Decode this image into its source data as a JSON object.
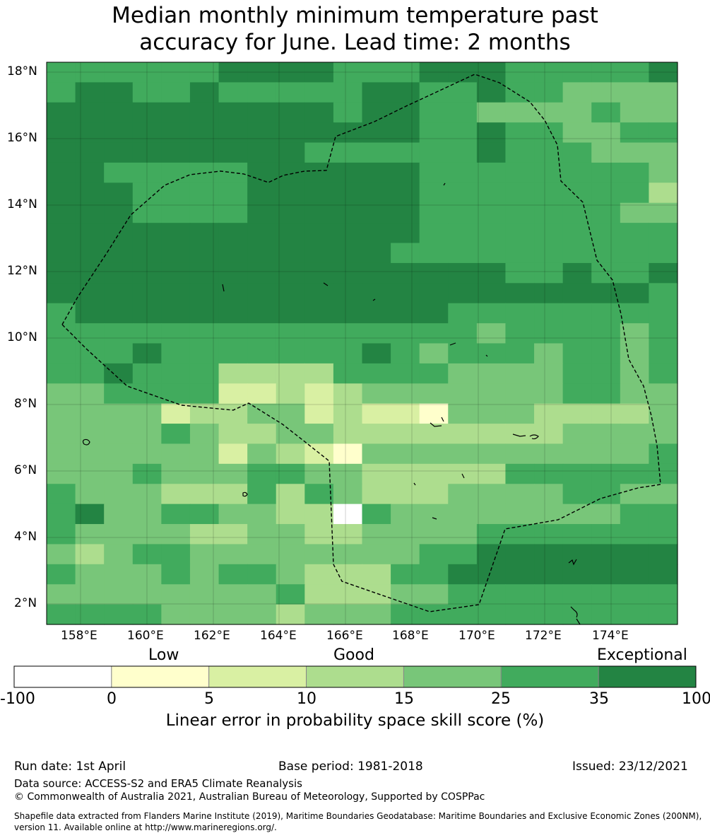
{
  "title_line1": "Median monthly minimum temperature past",
  "title_line2": "accuracy for June. Lead time: 2 months",
  "lat_labels": [
    "18°N",
    "16°N",
    "14°N",
    "12°N",
    "10°N",
    "8°N",
    "6°N",
    "4°N",
    "2°N"
  ],
  "lon_labels": [
    "158°E",
    "160°E",
    "162°E",
    "164°E",
    "166°E",
    "168°E",
    "170°E",
    "172°E",
    "174°E"
  ],
  "legend": {
    "category_labels": [
      "Low",
      "Good",
      "Exceptional"
    ],
    "bins": [
      "-100",
      "0",
      "5",
      "10",
      "15",
      "25",
      "35",
      "100"
    ],
    "colors": [
      "#ffffff",
      "#ffffcc",
      "#d9f0a3",
      "#addd8e",
      "#78c679",
      "#41ab5d",
      "#238443"
    ],
    "title": "Linear error in probability space skill score (%)"
  },
  "footer": {
    "run_date": "Run date: 1st April",
    "base_period": "Base period: 1981-2018",
    "issued": "Issued: 23/12/2021",
    "data_source": "Data source: ACCESS-S2 and ERA5 Climate Reanalysis",
    "copyright": "© Commonwealth of Australia 2021, Australian Bureau of Meteorology, Supported by COSPPac",
    "shapefile": "Shapefile data extracted from Flanders Marine Institute (2019), Maritime Boundaries Geodatabase: Maritime Boundaries and Exclusive Economic Zones (200NM), version 11. Available online at http://www.marineregions.org/."
  },
  "grid_rows_top_to_bottom": [
    "5555556666555666555556",
    "5665565555566556554444",
    "6666666666566554444544",
    "6666666666666556554455",
    "6666666665555556555444",
    "6655555666666555555554",
    "6665555666666555555553",
    "6665555666666555555544",
    "6666666666666555555555",
    "6666666666665555555555",
    "6666666666666666556556",
    "6666666666666666666665",
    "5666666666666655555555",
    "5555555555555554555545",
    "5556555555565455545545",
    "5565553333555544445545",
    "4455552232344444445544",
    "4444233442322144433334",
    "4444543344333333334444",
    "4444442432144444444445",
    "4445444554433333555555",
    "5444333535433344445544",
    "5644554433054444444455",
    "5444433443344445555555",
    "4345544444444556666666",
    "5444545543335566666666",
    "4444444453334455555555",
    "5555444434445555555555"
  ]
}
